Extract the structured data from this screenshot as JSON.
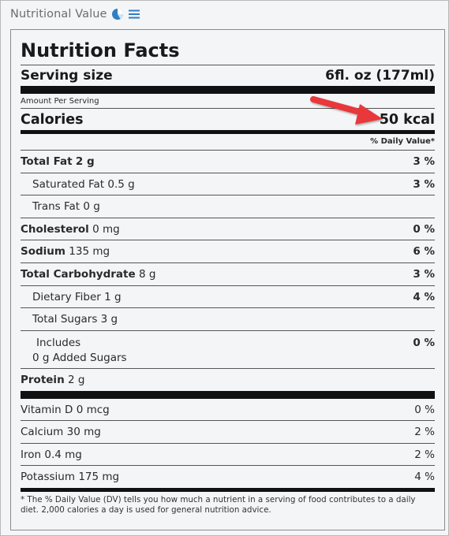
{
  "header": {
    "title": "Nutritional Value",
    "icons": [
      "pie-chart-icon",
      "list-icon"
    ],
    "accent": "#2f7fc1"
  },
  "label": {
    "title": "Nutrition Facts",
    "serving_label": "Serving size",
    "serving_value": "6fl. oz (177ml)",
    "amount_per_serving": "Amount Per Serving",
    "calories_label": "Calories",
    "calories_value": "50 kcal",
    "dv_header": "% Daily Value*",
    "nutrients": [
      {
        "name": "Total Fat",
        "amount": "2 g",
        "dv": "3 %"
      },
      {
        "name": "Saturated Fat",
        "amount": "0.5 g",
        "dv": "3 %"
      },
      {
        "name": "Trans Fat",
        "amount": "0 g",
        "dv": ""
      },
      {
        "name": "Cholesterol",
        "amount": "0 mg",
        "dv": "0 %"
      },
      {
        "name": "Sodium",
        "amount": "135 mg",
        "dv": "6 %"
      },
      {
        "name": "Total Carbohydrate",
        "amount": "8 g",
        "dv": "3 %"
      },
      {
        "name": "Dietary Fiber",
        "amount": "1 g",
        "dv": "4 %"
      },
      {
        "name": "Total Sugars",
        "amount": "3 g",
        "dv": ""
      },
      {
        "name": "Includes",
        "amount": "0 g Added Sugars",
        "dv": "0 %"
      },
      {
        "name": "Protein",
        "amount": "2 g",
        "dv": ""
      }
    ],
    "vitamins": [
      {
        "name": "Vitamin D",
        "amount": "0 mcg",
        "dv": "0 %"
      },
      {
        "name": "Calcium",
        "amount": "30 mg",
        "dv": "2 %"
      },
      {
        "name": "Iron",
        "amount": "0.4 mg",
        "dv": "2 %"
      },
      {
        "name": "Potassium",
        "amount": "175 mg",
        "dv": "4 %"
      }
    ],
    "footnote": "* The % Daily Value (DV) tells you how much a nutrient in a serving of food contributes to a daily diet. 2,000 calories a day is used for general nutrition advice."
  },
  "annotation": {
    "arrow_color": "#e8383a"
  }
}
